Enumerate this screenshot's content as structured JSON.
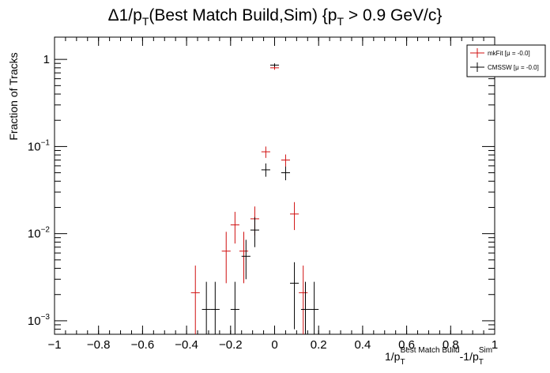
{
  "chart_data": {
    "type": "scatter",
    "title_parts": {
      "delta": "Δ",
      "num": "1/p",
      "sub": "T",
      "middle": "(Best Match Build,Sim) {p",
      "sub2": "T",
      "tail": " > 0.9 GeV/c}"
    },
    "ylabel": "Fraction of Tracks",
    "xlabel_parts": {
      "a": "1/p",
      "a_sub": "T",
      "a_sup": "Best Match Build",
      "b": "-1/p",
      "b_sub": "T",
      "b_sup": "Sim"
    },
    "xlim": [
      -1.0,
      1.0
    ],
    "ylim": [
      0.0007,
      1.8
    ],
    "yscale": "log",
    "grid": false,
    "legend_placement": "top-right",
    "x_ticks": [
      {
        "value": -1.0,
        "label": "−1"
      },
      {
        "value": -0.8,
        "label": "−0.8"
      },
      {
        "value": -0.6,
        "label": "−0.6"
      },
      {
        "value": -0.4,
        "label": "−0.4"
      },
      {
        "value": -0.2,
        "label": "−0.2"
      },
      {
        "value": 0.0,
        "label": "0"
      },
      {
        "value": 0.2,
        "label": "0.2"
      },
      {
        "value": 0.4,
        "label": "0.4"
      },
      {
        "value": 0.6,
        "label": "0.6"
      },
      {
        "value": 0.8,
        "label": "0.8"
      },
      {
        "value": 1.0,
        "label": "1"
      }
    ],
    "y_ticks": [
      {
        "value": 1,
        "base": "1",
        "exp": ""
      },
      {
        "value": 0.1,
        "base": "10",
        "exp": "−1"
      },
      {
        "value": 0.01,
        "base": "10",
        "exp": "−2"
      },
      {
        "value": 0.001,
        "base": "10",
        "exp": "−3"
      }
    ],
    "series": [
      {
        "name": "mkFit  [μ = -0.0]",
        "color": "#d01010",
        "xerr": 0.02,
        "points": [
          {
            "x": -0.36,
            "y": 0.0021,
            "lo": 0.0005,
            "hi": 0.0043
          },
          {
            "x": -0.22,
            "y": 0.0063,
            "lo": 0.0027,
            "hi": 0.0105
          },
          {
            "x": -0.18,
            "y": 0.0126,
            "lo": 0.0077,
            "hi": 0.0178
          },
          {
            "x": -0.14,
            "y": 0.0063,
            "lo": 0.0027,
            "hi": 0.0105
          },
          {
            "x": -0.09,
            "y": 0.0148,
            "lo": 0.0095,
            "hi": 0.0205
          },
          {
            "x": -0.04,
            "y": 0.087,
            "lo": 0.074,
            "hi": 0.1
          },
          {
            "x": 0.0,
            "y": 0.8,
            "lo": 0.76,
            "hi": 0.84
          },
          {
            "x": 0.05,
            "y": 0.07,
            "lo": 0.059,
            "hi": 0.081
          },
          {
            "x": 0.09,
            "y": 0.0168,
            "lo": 0.011,
            "hi": 0.023
          },
          {
            "x": 0.13,
            "y": 0.0021,
            "lo": 0.0005,
            "hi": 0.0043
          }
        ]
      },
      {
        "name": "CMSSW  [μ = -0.0]",
        "color": "#000000",
        "xerr": 0.02,
        "points": [
          {
            "x": -0.31,
            "y": 0.00135,
            "lo": 0.0002,
            "hi": 0.0028
          },
          {
            "x": -0.27,
            "y": 0.00135,
            "lo": 0.0002,
            "hi": 0.0028
          },
          {
            "x": -0.18,
            "y": 0.00135,
            "lo": 0.0002,
            "hi": 0.0028
          },
          {
            "x": -0.13,
            "y": 0.0055,
            "lo": 0.003,
            "hi": 0.0085
          },
          {
            "x": -0.09,
            "y": 0.011,
            "lo": 0.007,
            "hi": 0.0155
          },
          {
            "x": -0.04,
            "y": 0.054,
            "lo": 0.045,
            "hi": 0.064
          },
          {
            "x": 0.0,
            "y": 0.86,
            "lo": 0.82,
            "hi": 0.9
          },
          {
            "x": 0.05,
            "y": 0.05,
            "lo": 0.041,
            "hi": 0.059
          },
          {
            "x": 0.09,
            "y": 0.0027,
            "lo": 0.0008,
            "hi": 0.0047
          },
          {
            "x": 0.14,
            "y": 0.00135,
            "lo": 0.0002,
            "hi": 0.0028
          },
          {
            "x": 0.18,
            "y": 0.00135,
            "lo": 0.0002,
            "hi": 0.0028
          }
        ]
      }
    ]
  }
}
